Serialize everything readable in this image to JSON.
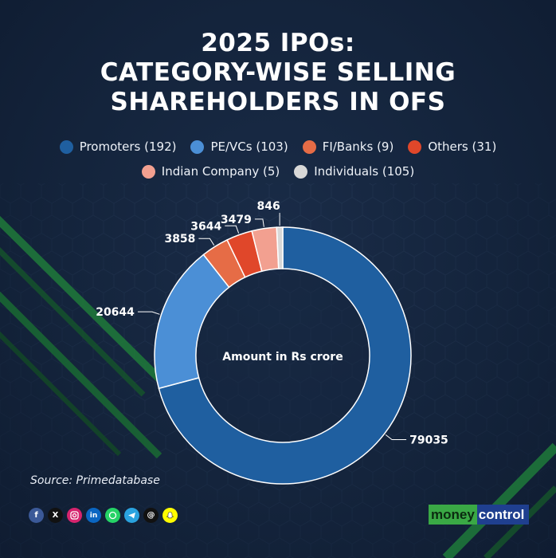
{
  "title": [
    "2025 IPOs:",
    "CATEGORY-WISE SELLING",
    "SHAREHOLDERS IN OFS"
  ],
  "chart_data": {
    "type": "pie",
    "donut": true,
    "center_label": "Amount in Rs crore",
    "legend_position": "top",
    "series": [
      {
        "name": "Promoters (192)",
        "value": 79035,
        "label": "79035",
        "color": "#1f5fa0"
      },
      {
        "name": "PE/VCs (103)",
        "value": 20644,
        "label": "20644",
        "color": "#4b8fd6"
      },
      {
        "name": "FI/Banks (9)",
        "value": 3858,
        "label": "3858",
        "color": "#e66c46"
      },
      {
        "name": "Others (31)",
        "value": 3644,
        "label": "3644",
        "color": "#e0472a"
      },
      {
        "name": "Indian Company (5)",
        "value": 3479,
        "label": "3479",
        "color": "#f2a090"
      },
      {
        "name": "Individuals (105)",
        "value": 846,
        "label": "846",
        "color": "#d8d8d8"
      }
    ]
  },
  "source": "Source: Primedatabase",
  "social_icons": [
    "facebook-icon",
    "x-icon",
    "instagram-icon",
    "linkedin-icon",
    "whatsapp-icon",
    "telegram-icon",
    "threads-icon",
    "snapchat-icon"
  ],
  "brand": {
    "part1": "money",
    "part2": "control"
  }
}
